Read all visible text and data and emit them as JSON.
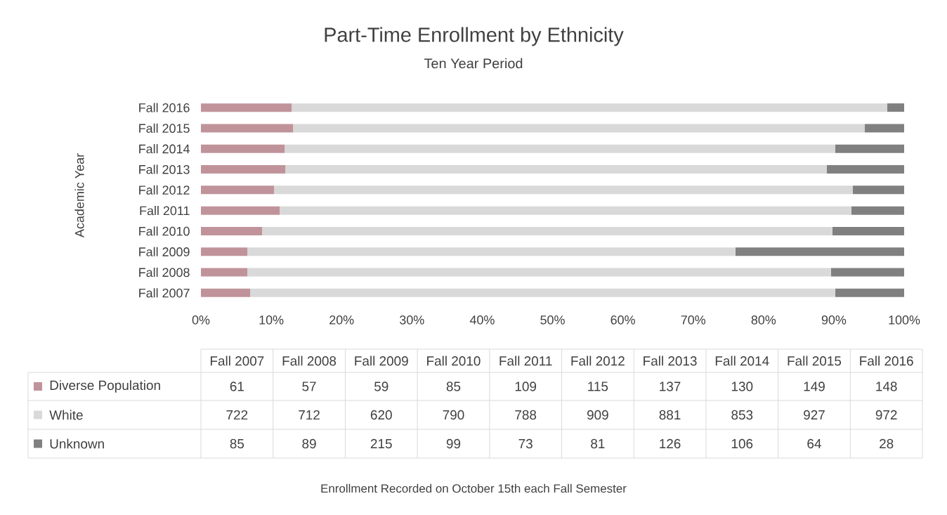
{
  "chart_data": [
    {
      "type": "bar",
      "orientation": "horizontal",
      "stacked": true,
      "title": "Part-Time Enrollment by Ethnicity",
      "subtitle": "Ten Year Period",
      "ylabel": "Academic Year",
      "categories": [
        "Fall 2016",
        "Fall 2015",
        "Fall 2014",
        "Fall 2013",
        "Fall 2012",
        "Fall 2011",
        "Fall 2010",
        "Fall 2009",
        "Fall 2008",
        "Fall 2007"
      ],
      "series": [
        {
          "name": "Diverse Population",
          "color": "#c0939a",
          "values": [
            12.9,
            13.1,
            11.9,
            12.0,
            10.4,
            11.2,
            8.7,
            6.6,
            6.6,
            7.0
          ]
        },
        {
          "name": "White",
          "color": "#d9d9d9",
          "values": [
            84.7,
            81.3,
            78.3,
            77.0,
            82.3,
            81.3,
            81.1,
            69.4,
            83.0,
            83.2
          ]
        },
        {
          "name": "Unknown",
          "color": "#808080",
          "values": [
            2.4,
            5.6,
            9.8,
            11.0,
            7.3,
            7.5,
            10.2,
            24.0,
            10.4,
            9.8
          ]
        }
      ],
      "xlim": [
        0,
        100
      ],
      "xticks": [
        {
          "value": 0,
          "label": "0%"
        },
        {
          "value": 10,
          "label": "10%"
        },
        {
          "value": 20,
          "label": "20%"
        },
        {
          "value": 30,
          "label": "30%"
        },
        {
          "value": 40,
          "label": "40%"
        },
        {
          "value": 50,
          "label": "50%"
        },
        {
          "value": 60,
          "label": "60%"
        },
        {
          "value": 70,
          "label": "70%"
        },
        {
          "value": 80,
          "label": "80%"
        },
        {
          "value": 90,
          "label": "90%"
        },
        {
          "value": 100,
          "label": "100%"
        }
      ],
      "legend": "bottom",
      "annotations": [
        "Enrollment Recorded on October 15th each Fall Semester"
      ]
    },
    {
      "type": "other",
      "categories": [
        "Fall 2007",
        "Fall 2008",
        "Fall 2009",
        "Fall 2010",
        "Fall 2011",
        "Fall 2012",
        "Fall 2013",
        "Fall 2014",
        "Fall 2015",
        "Fall 2016"
      ],
      "series": [
        {
          "values": [
            61,
            57,
            59,
            85,
            109,
            115,
            137,
            130,
            149,
            148
          ]
        },
        {
          "values": [
            722,
            712,
            620,
            790,
            788,
            909,
            881,
            853,
            927,
            972
          ]
        },
        {
          "values": [
            85,
            89,
            215,
            99,
            73,
            81,
            126,
            106,
            64,
            28
          ]
        }
      ],
      "data_labels": true
    }
  ]
}
